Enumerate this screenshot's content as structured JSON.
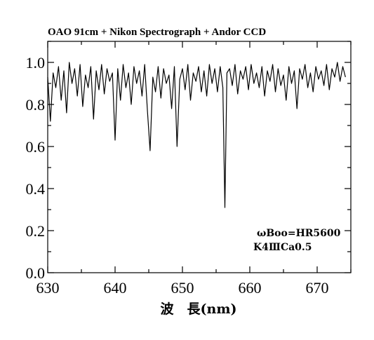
{
  "chart_data": {
    "type": "line",
    "title": "OAO 91cm + Nikon Spectrograph + Andor CCD",
    "xlabel": "波　長(nm)",
    "ylabel": "",
    "xlim": [
      630,
      675
    ],
    "ylim": [
      0.0,
      1.1
    ],
    "xticks": [
      630,
      640,
      650,
      660,
      670
    ],
    "xtick_labels": [
      "630",
      "640",
      "650",
      "660",
      "670"
    ],
    "yticks": [
      0.0,
      0.2,
      0.4,
      0.6,
      0.8,
      1.0
    ],
    "ytick_labels": [
      "0.0",
      "0.2",
      "0.4",
      "0.6",
      "0.8",
      "1.0"
    ],
    "grid": false,
    "annotations": [
      "ωBoo=HR5600",
      "K4ⅢCa0.5"
    ],
    "series": [
      {
        "color": "#000000",
        "x": [
          630.0,
          630.4,
          630.8,
          631.2,
          631.6,
          632.0,
          632.4,
          632.8,
          633.2,
          633.6,
          634.0,
          634.4,
          634.8,
          635.2,
          635.6,
          636.0,
          636.4,
          636.8,
          637.2,
          637.6,
          638.0,
          638.4,
          638.8,
          639.2,
          639.6,
          640.0,
          640.4,
          640.8,
          641.2,
          641.6,
          642.0,
          642.4,
          642.8,
          643.2,
          643.6,
          644.0,
          644.4,
          644.8,
          645.2,
          645.6,
          646.0,
          646.4,
          646.8,
          647.2,
          647.6,
          648.0,
          648.4,
          648.8,
          649.2,
          649.6,
          650.0,
          650.4,
          650.8,
          651.2,
          651.6,
          652.0,
          652.4,
          652.8,
          653.2,
          653.6,
          654.0,
          654.4,
          654.8,
          655.2,
          655.6,
          656.0,
          656.3,
          656.6,
          657.0,
          657.4,
          657.8,
          658.2,
          658.6,
          659.0,
          659.4,
          659.8,
          660.2,
          660.6,
          661.0,
          661.4,
          661.8,
          662.2,
          662.6,
          663.0,
          663.4,
          663.8,
          664.2,
          664.6,
          665.0,
          665.4,
          665.8,
          666.2,
          666.6,
          667.0,
          667.4,
          667.8,
          668.2,
          668.6,
          669.0,
          669.4,
          669.8,
          670.2,
          670.6,
          671.0,
          671.4,
          671.8,
          672.2,
          672.6,
          673.0,
          673.4,
          673.8,
          674.2
        ],
        "y": [
          0.93,
          0.72,
          0.95,
          0.88,
          0.98,
          0.82,
          0.96,
          0.76,
          1.0,
          0.9,
          0.97,
          0.84,
          0.99,
          0.79,
          0.94,
          0.88,
          0.98,
          0.73,
          0.96,
          0.87,
          0.99,
          0.85,
          0.97,
          0.91,
          0.95,
          0.63,
          0.97,
          0.82,
          0.99,
          0.88,
          0.95,
          0.8,
          0.98,
          0.9,
          0.96,
          0.84,
          0.99,
          0.77,
          0.58,
          0.93,
          0.86,
          0.98,
          0.83,
          0.97,
          0.9,
          0.94,
          0.78,
          0.98,
          0.6,
          0.92,
          0.97,
          0.87,
          0.99,
          0.82,
          0.95,
          0.91,
          0.98,
          0.86,
          0.96,
          0.84,
          0.99,
          0.9,
          0.97,
          0.86,
          0.98,
          0.88,
          0.31,
          0.95,
          0.97,
          0.89,
          0.99,
          0.85,
          0.96,
          0.92,
          0.98,
          0.87,
          0.99,
          0.9,
          0.95,
          0.88,
          0.98,
          0.84,
          0.96,
          0.91,
          0.99,
          0.86,
          0.97,
          0.89,
          0.94,
          0.82,
          0.98,
          0.9,
          0.96,
          0.78,
          0.97,
          0.92,
          0.99,
          0.88,
          0.95,
          0.86,
          0.98,
          0.92,
          0.96,
          0.89,
          0.99,
          0.87,
          0.97,
          0.93,
          1.0,
          0.91,
          0.98,
          0.93
        ]
      }
    ]
  }
}
